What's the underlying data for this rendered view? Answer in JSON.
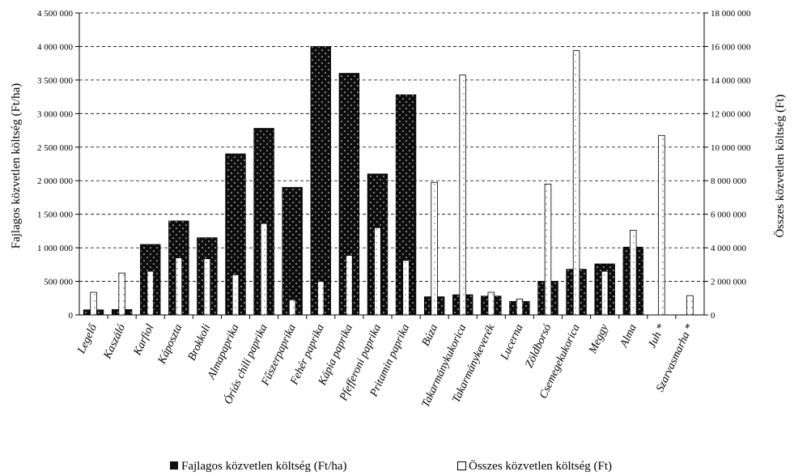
{
  "chart_data": {
    "type": "bar",
    "categories": [
      "Legelő",
      "Kaszáló",
      "Karfiol",
      "Káposzta",
      "Brokkoli",
      "Almapaprika",
      "Óriás chili paprika",
      "Fűszerpaprika",
      "Fehér paprika",
      "Kápia paprika",
      "Pfefferoni paprika",
      "Pritamin paprika",
      "Búza",
      "Takarmánykukorica",
      "Takarmánykeverék",
      "Lucerna",
      "Zöldborsó",
      "Csemegekukorica",
      "Meggy",
      "Alma",
      "Juh *",
      "Szarvasmarha *"
    ],
    "series": [
      {
        "name": "Fajlagos közvetlen költség (Ft/ha)",
        "axis": "left",
        "color": "#111111",
        "values": [
          75000,
          80000,
          1050000,
          1400000,
          1150000,
          2400000,
          2780000,
          1900000,
          4000000,
          3600000,
          2100000,
          3280000,
          270000,
          300000,
          280000,
          200000,
          500000,
          680000,
          760000,
          1010000,
          null,
          null
        ]
      },
      {
        "name": "Összes közvetlen költség (Ft)",
        "axis": "right",
        "color": "#ffffff",
        "values": [
          1350000,
          2500000,
          2600000,
          3400000,
          3350000,
          2400000,
          5450000,
          900000,
          2000000,
          3550000,
          5200000,
          3250000,
          7900000,
          14300000,
          1350000,
          950000,
          7800000,
          15750000,
          2600000,
          5050000,
          10700000,
          1150000
        ]
      }
    ],
    "y_left": {
      "label": "Fajlagos közvetlen költség (Ft/ha)",
      "range": [
        0,
        4500000
      ],
      "ticks": [
        "0",
        "500 000",
        "1 000 000",
        "1 500 000",
        "2 000 000",
        "2 500 000",
        "3 000 000",
        "3 500 000",
        "4 000 000",
        "4 500 000"
      ]
    },
    "y_right": {
      "label": "Összes közvetlen költség (Ft)",
      "range": [
        0,
        18000000
      ],
      "ticks": [
        "0",
        "2 000 000",
        "4 000 000",
        "6 000 000",
        "8 000 000",
        "10 000 000",
        "12 000 000",
        "14 000 000",
        "16 000 000",
        "18 000 000"
      ]
    },
    "grid": "horizontal dashed",
    "legend_position": "bottom"
  }
}
